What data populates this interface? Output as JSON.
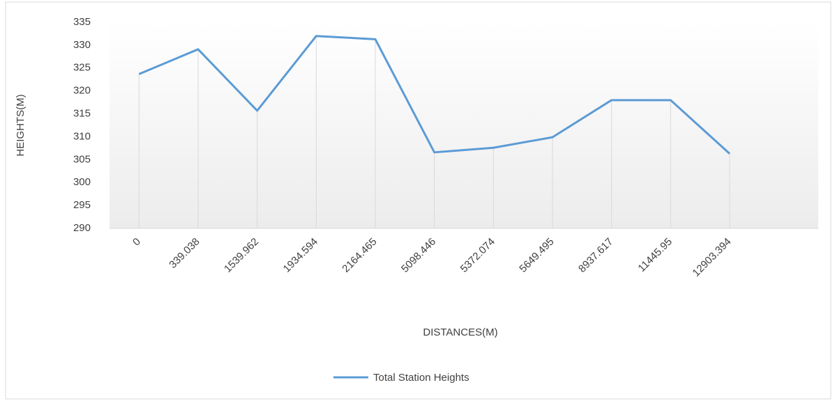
{
  "chart_data": {
    "type": "line",
    "x_label": "DISTANCES(M)",
    "y_label": "HEIGHTS(M)",
    "categories": [
      "0",
      "339.038",
      "1539.962",
      "1934.594",
      "2164.465",
      "5098.446",
      "5372.074",
      "5649.495",
      "8937.617",
      "11445.95",
      "12903.394",
      null
    ],
    "series": [
      {
        "name": "Total Station Heights",
        "color": "#5b9bd5",
        "values": [
          323.7,
          329.1,
          315.7,
          332,
          331.3,
          306.6,
          307.6,
          309.9,
          318,
          318,
          306.3,
          null
        ]
      }
    ],
    "ylim": [
      290,
      335
    ],
    "yticks": [
      290,
      295,
      300,
      305,
      310,
      315,
      320,
      325,
      330,
      335
    ],
    "drop_lines": true,
    "legend": "bottom"
  }
}
